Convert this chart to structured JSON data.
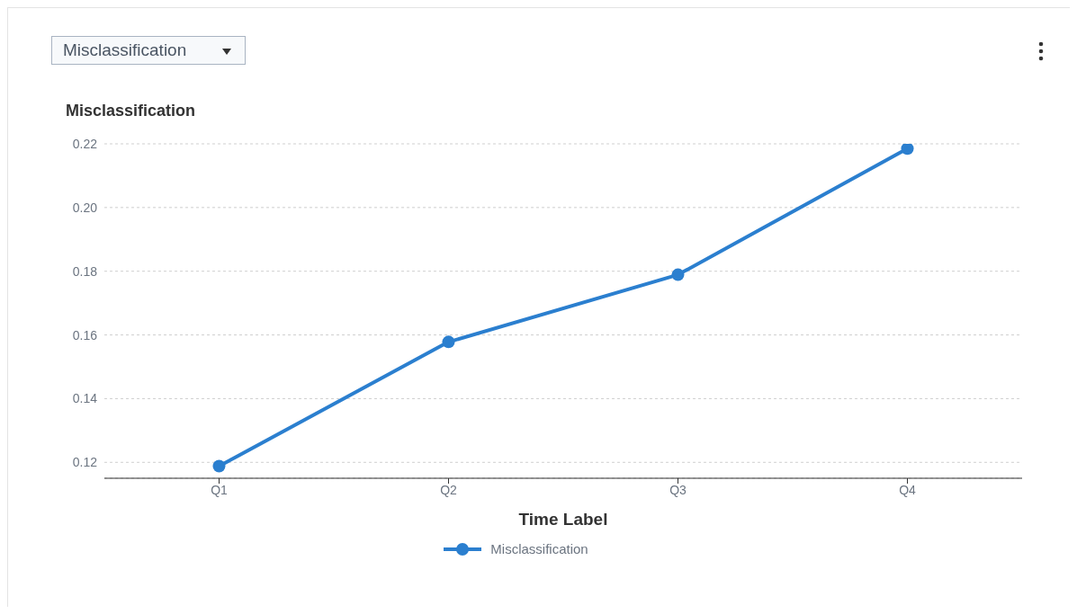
{
  "chart_data": {
    "type": "line",
    "ylabel": "Misclassification",
    "xlabel": "Time Label",
    "annotations": [
      "Misclassification"
    ],
    "categories": [
      "Q1",
      "Q2",
      "Q3",
      "Q4"
    ],
    "series": [
      {
        "name": "Misclassification",
        "color": "#2b7fcf",
        "values": [
          0.1188,
          0.1578,
          0.1789,
          0.2185
        ]
      }
    ],
    "ylim": [
      0.115,
      0.22
    ],
    "yticks": [
      0.12,
      0.14,
      0.16,
      0.18,
      {
        "value": 0.2,
        "label": "0.20"
      },
      0.22
    ],
    "grid": "y",
    "legend": "bottom",
    "marker": "circle",
    "line_style": "solid"
  }
}
